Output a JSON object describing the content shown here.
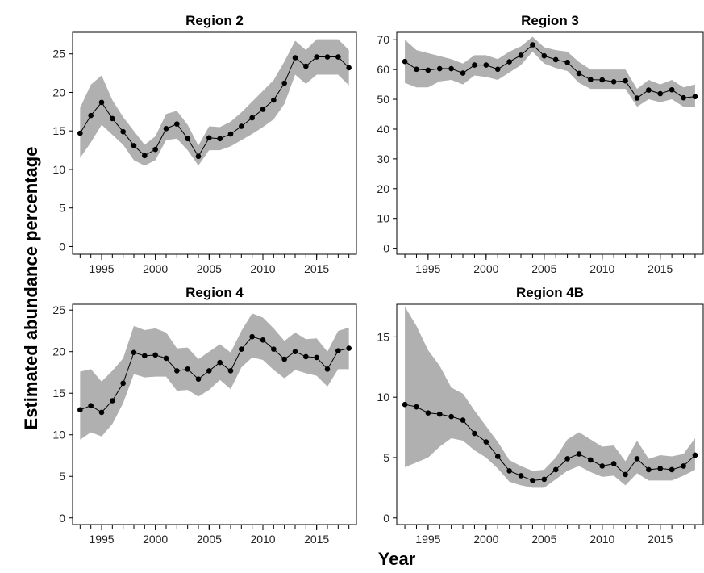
{
  "figure": {
    "ylabel": "Estimated abundance percentage",
    "xlabel": "Year"
  },
  "chart_data": [
    {
      "type": "line",
      "title": "Region 2",
      "x": [
        1993,
        1994,
        1995,
        1996,
        1997,
        1998,
        1999,
        2000,
        2001,
        2002,
        2003,
        2004,
        2005,
        2006,
        2007,
        2008,
        2009,
        2010,
        2011,
        2012,
        2013,
        2014,
        2015,
        2016,
        2017,
        2018
      ],
      "values": [
        14.7,
        17.0,
        18.7,
        16.6,
        14.9,
        13.1,
        11.8,
        12.6,
        15.3,
        15.9,
        14.0,
        11.7,
        14.1,
        14.0,
        14.6,
        15.6,
        16.7,
        17.8,
        19.0,
        21.2,
        24.5,
        23.4,
        24.6,
        24.6,
        24.6,
        23.2
      ],
      "lower": [
        11.5,
        13.5,
        15.8,
        14.5,
        13.2,
        11.2,
        10.5,
        11.2,
        13.8,
        14.0,
        12.5,
        10.5,
        12.5,
        12.5,
        13.0,
        13.8,
        14.6,
        15.5,
        16.5,
        18.5,
        22.3,
        21.1,
        22.3,
        22.3,
        22.3,
        20.9
      ],
      "upper": [
        18.0,
        21.0,
        22.2,
        19.0,
        16.8,
        15.0,
        13.2,
        14.3,
        17.2,
        17.6,
        15.8,
        13.1,
        15.6,
        15.5,
        16.2,
        17.4,
        18.8,
        20.2,
        21.6,
        24.0,
        26.7,
        25.5,
        26.9,
        26.9,
        26.9,
        25.5
      ],
      "xlim": [
        1992.3,
        2018.7
      ],
      "ylim": [
        -1,
        27.8
      ],
      "xticks": [
        1995,
        2000,
        2005,
        2010,
        2015
      ],
      "yticks": [
        0,
        5,
        10,
        15,
        20,
        25
      ],
      "grid": false
    },
    {
      "type": "line",
      "title": "Region 3",
      "x": [
        1993,
        1994,
        1995,
        1996,
        1997,
        1998,
        1999,
        2000,
        2001,
        2002,
        2003,
        2004,
        2005,
        2006,
        2007,
        2008,
        2009,
        2010,
        2011,
        2012,
        2013,
        2014,
        2015,
        2016,
        2017,
        2018
      ],
      "values": [
        62.7,
        60.1,
        59.8,
        60.3,
        60.3,
        58.8,
        61.5,
        61.5,
        60.1,
        62.6,
        64.8,
        68.3,
        64.6,
        63.3,
        62.4,
        58.7,
        56.6,
        56.5,
        55.9,
        56.2,
        50.4,
        53.1,
        51.9,
        53.2,
        50.5,
        50.9
      ],
      "lower": [
        55.5,
        54.0,
        54.0,
        56.0,
        56.5,
        55.0,
        58.0,
        57.5,
        56.5,
        59.0,
        61.5,
        66.0,
        62.0,
        60.5,
        59.5,
        55.5,
        53.5,
        53.5,
        53.5,
        53.5,
        47.5,
        50.0,
        49.0,
        50.0,
        47.5,
        47.5
      ],
      "upper": [
        70.0,
        66.5,
        65.5,
        64.5,
        63.5,
        62.0,
        64.8,
        64.8,
        63.5,
        66.0,
        67.8,
        71.0,
        67.5,
        66.5,
        66.0,
        62.5,
        60.0,
        60.0,
        60.0,
        60.0,
        53.5,
        56.5,
        55.0,
        56.5,
        54.0,
        55.0
      ],
      "xlim": [
        1992.3,
        2018.7
      ],
      "ylim": [
        -2,
        72.5
      ],
      "xticks": [
        1995,
        2000,
        2005,
        2010,
        2015
      ],
      "yticks": [
        0,
        10,
        20,
        30,
        40,
        50,
        60,
        70
      ],
      "grid": false
    },
    {
      "type": "line",
      "title": "Region 4",
      "x": [
        1993,
        1994,
        1995,
        1996,
        1997,
        1998,
        1999,
        2000,
        2001,
        2002,
        2003,
        2004,
        2005,
        2006,
        2007,
        2008,
        2009,
        2010,
        2011,
        2012,
        2013,
        2014,
        2015,
        2016,
        2017,
        2018
      ],
      "values": [
        13.0,
        13.5,
        12.7,
        14.1,
        16.2,
        19.9,
        19.5,
        19.6,
        19.2,
        17.7,
        17.9,
        16.7,
        17.7,
        18.7,
        17.7,
        20.3,
        21.8,
        21.4,
        20.3,
        19.1,
        20.0,
        19.4,
        19.3,
        17.9,
        20.1,
        20.4
      ],
      "lower": [
        9.4,
        10.3,
        9.8,
        11.3,
        13.8,
        17.3,
        16.9,
        17.0,
        17.0,
        15.3,
        15.4,
        14.6,
        15.4,
        16.6,
        15.5,
        18.1,
        19.3,
        19.0,
        17.8,
        16.8,
        17.8,
        17.4,
        17.1,
        15.8,
        17.9,
        17.9
      ],
      "upper": [
        17.6,
        17.9,
        16.4,
        17.7,
        19.2,
        23.1,
        22.6,
        22.8,
        22.3,
        20.4,
        20.5,
        19.1,
        20.0,
        20.9,
        19.9,
        22.5,
        24.6,
        24.1,
        22.8,
        21.3,
        22.3,
        21.5,
        21.6,
        20.0,
        22.5,
        22.9
      ],
      "xlim": [
        1992.3,
        2018.7
      ],
      "ylim": [
        -0.8,
        25.7
      ],
      "xticks": [
        1995,
        2000,
        2005,
        2010,
        2015
      ],
      "yticks": [
        0,
        5,
        10,
        15,
        20,
        25
      ],
      "grid": false
    },
    {
      "type": "line",
      "title": "Region 4B",
      "x": [
        1993,
        1994,
        1995,
        1996,
        1997,
        1998,
        1999,
        2000,
        2001,
        2002,
        2003,
        2004,
        2005,
        2006,
        2007,
        2008,
        2009,
        2010,
        2011,
        2012,
        2013,
        2014,
        2015,
        2016,
        2017,
        2018
      ],
      "values": [
        9.4,
        9.2,
        8.7,
        8.6,
        8.4,
        8.1,
        7.0,
        6.3,
        5.1,
        3.9,
        3.5,
        3.1,
        3.2,
        4.0,
        4.9,
        5.3,
        4.8,
        4.3,
        4.5,
        3.6,
        4.9,
        4.0,
        4.1,
        4.0,
        4.3,
        5.2
      ],
      "lower": [
        4.2,
        4.6,
        5.0,
        5.9,
        6.6,
        6.4,
        5.6,
        5.0,
        4.1,
        3.0,
        2.7,
        2.5,
        2.5,
        3.2,
        3.9,
        4.3,
        3.8,
        3.4,
        3.5,
        2.7,
        3.7,
        3.1,
        3.1,
        3.1,
        3.5,
        4.0
      ],
      "upper": [
        17.5,
        15.9,
        13.9,
        12.6,
        10.8,
        10.3,
        8.9,
        7.6,
        6.3,
        4.8,
        4.3,
        3.9,
        4.0,
        5.0,
        6.5,
        7.1,
        6.5,
        5.9,
        6.0,
        4.7,
        6.4,
        4.9,
        5.2,
        5.1,
        5.3,
        6.6
      ],
      "xlim": [
        1992.3,
        2018.7
      ],
      "ylim": [
        -0.55,
        17.7
      ],
      "xticks": [
        1995,
        2000,
        2005,
        2010,
        2015
      ],
      "yticks": [
        0,
        5,
        10,
        15
      ],
      "grid": false
    }
  ],
  "colors": {
    "band": "#b0b0b0",
    "line": "#000000",
    "point": "#000000",
    "axis": "#000000"
  }
}
